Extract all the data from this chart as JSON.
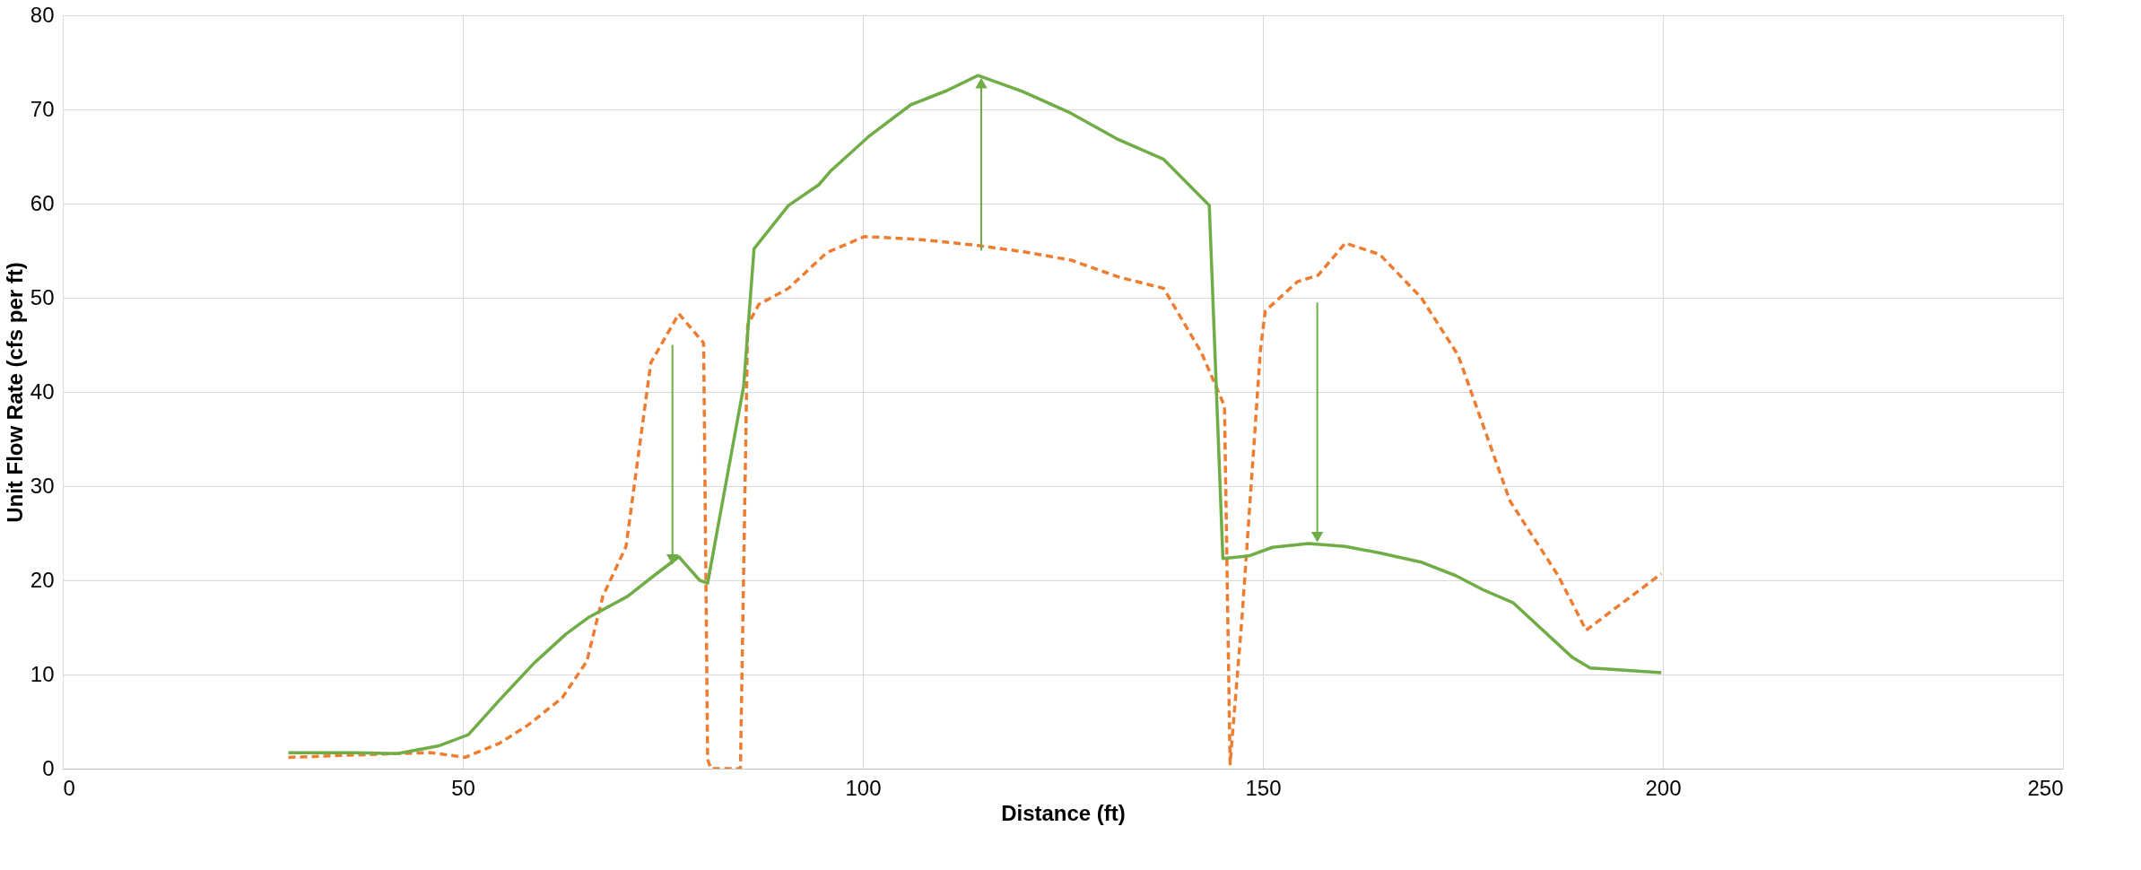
{
  "chart_data": {
    "type": "line",
    "xlabel": "Distance (ft)",
    "ylabel": "Unit Flow Rate (cfs per ft)",
    "xlim": [
      0,
      250
    ],
    "xticks": [
      0,
      50,
      100,
      150,
      200,
      250
    ],
    "ylim": [
      0,
      80
    ],
    "yticks": [
      0,
      10,
      20,
      30,
      40,
      50,
      60,
      70,
      80
    ],
    "grid": true,
    "series": [
      {
        "color": "#ed7d31",
        "line_style": "dashed",
        "x": [
          28.2,
          34.9,
          41.8,
          46.0,
          50.3,
          54.6,
          58.1,
          62.4,
          65.5,
          67.5,
          70.4,
          73.5,
          77.0,
          80.1,
          80.6,
          81.0,
          84.7,
          85.6,
          87.0,
          90.7,
          95.5,
          100.2,
          107.0,
          113.9,
          120.0,
          126.0,
          132.0,
          137.6,
          142.3,
          145.2,
          145.9,
          147.4,
          149.7,
          150.3,
          154.3,
          156.9,
          160.3,
          164.6,
          169.8,
          174.4,
          180.9,
          186.9,
          190.4,
          199.8
        ],
        "values": [
          1.2,
          1.4,
          1.6,
          1.7,
          1.2,
          2.7,
          4.6,
          7.5,
          11.4,
          18.3,
          23.6,
          43.1,
          48.3,
          45.2,
          1.0,
          0,
          0,
          47.1,
          49.3,
          51.0,
          54.8,
          56.5,
          56.2,
          55.6,
          54.9,
          54.0,
          52.2,
          51.0,
          44.2,
          38.5,
          0.5,
          16.1,
          44.5,
          48.6,
          51.7,
          52.4,
          55.8,
          54.6,
          50.0,
          43.9,
          28.4,
          20.5,
          14.7,
          20.7
        ]
      },
      {
        "color": "#70ad47",
        "line_style": "solid",
        "x": [
          28.2,
          36.6,
          41.8,
          46.9,
          50.7,
          54.6,
          58.9,
          62.9,
          65.8,
          70.6,
          73.9,
          77.0,
          79.6,
          80.6,
          85.1,
          86.4,
          90.7,
          94.5,
          95.9,
          100.7,
          106.0,
          110.5,
          114.4,
          120.0,
          126.0,
          131.7,
          137.6,
          143.3,
          145.0,
          148.3,
          151.2,
          155.7,
          160.3,
          164.6,
          169.9,
          174.1,
          177.5,
          181.3,
          188.7,
          190.9,
          199.8
        ],
        "values": [
          1.7,
          1.7,
          1.6,
          2.4,
          3.6,
          7.3,
          11.2,
          14.3,
          16.1,
          18.3,
          20.5,
          22.5,
          20.0,
          19.7,
          40.6,
          55.2,
          59.8,
          62.0,
          63.4,
          67.1,
          70.5,
          72.0,
          73.6,
          71.9,
          69.6,
          66.9,
          64.7,
          59.8,
          22.3,
          22.6,
          23.5,
          23.9,
          23.6,
          22.9,
          21.9,
          20.5,
          19.0,
          17.6,
          11.8,
          10.7,
          10.2
        ]
      },
      {
        "color": "#70ad47",
        "line_style": "solid",
        "marker": "triangle",
        "x": [
          76.2,
          76.2
        ],
        "values": [
          45.0,
          22.2
        ]
      },
      {
        "color": "#70ad47",
        "line_style": "solid",
        "marker": "triangle",
        "x": [
          114.8,
          114.8
        ],
        "values": [
          55.0,
          72.8
        ]
      },
      {
        "color": "#70ad47",
        "line_style": "solid",
        "marker": "triangle",
        "x": [
          156.8,
          156.8
        ],
        "values": [
          49.5,
          24.6
        ]
      }
    ]
  }
}
